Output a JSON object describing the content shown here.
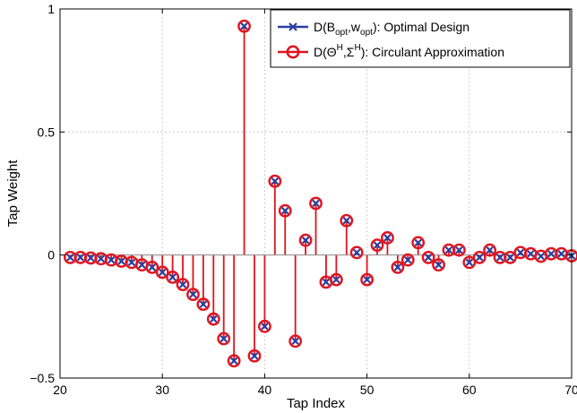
{
  "chart_data": {
    "type": "stem",
    "xlabel": "Tap Index",
    "ylabel": "Tap Weight",
    "xlim": [
      21,
      70
    ],
    "ylim": [
      -0.5,
      1
    ],
    "xticks": [
      20,
      30,
      40,
      50,
      60,
      70
    ],
    "yticks": [
      -0.5,
      0,
      0.5,
      1
    ],
    "xtick_labels": [
      "20",
      "30",
      "40",
      "50",
      "60",
      "70"
    ],
    "ytick_labels": [
      "−0.5",
      "0",
      "0.5",
      "1"
    ],
    "grid": true,
    "legend_position": "top-right",
    "x": [
      21,
      22,
      23,
      24,
      25,
      26,
      27,
      28,
      29,
      30,
      31,
      32,
      33,
      34,
      35,
      36,
      37,
      38,
      39,
      40,
      41,
      42,
      43,
      44,
      45,
      46,
      47,
      48,
      49,
      50,
      51,
      52,
      53,
      54,
      55,
      56,
      57,
      58,
      59,
      60,
      61,
      62,
      63,
      64,
      65,
      66,
      67,
      68,
      69,
      70
    ],
    "series": [
      {
        "legend": {
          "prefix": "D(B",
          "sub1": "opt",
          "mid": ",w",
          "sub2": "opt",
          "suffix": "): Optimal Design"
        },
        "marker": "x",
        "color": "#2b3f9e",
        "values": [
          -0.01,
          -0.01,
          -0.012,
          -0.015,
          -0.02,
          -0.025,
          -0.03,
          -0.04,
          -0.05,
          -0.07,
          -0.09,
          -0.12,
          -0.16,
          -0.2,
          -0.26,
          -0.34,
          -0.43,
          0.93,
          -0.41,
          -0.29,
          0.3,
          0.18,
          -0.35,
          0.06,
          0.21,
          -0.11,
          -0.1,
          0.14,
          0.01,
          -0.1,
          0.04,
          0.07,
          -0.05,
          -0.02,
          0.05,
          -0.01,
          -0.04,
          0.02,
          0.02,
          -0.03,
          -0.01,
          0.02,
          -0.01,
          -0.01,
          0.01,
          0.005,
          -0.005,
          0.005,
          0.005,
          -0.003
        ]
      },
      {
        "legend": {
          "prefix": "D(Θ",
          "sup1": "H",
          "mid": ",Σ",
          "sup2": "H",
          "suffix": "): Circulant Approximation"
        },
        "marker": "o",
        "color": "#e0141e",
        "values": [
          -0.01,
          -0.01,
          -0.012,
          -0.015,
          -0.02,
          -0.025,
          -0.03,
          -0.04,
          -0.05,
          -0.07,
          -0.09,
          -0.12,
          -0.16,
          -0.2,
          -0.26,
          -0.34,
          -0.43,
          0.93,
          -0.41,
          -0.29,
          0.3,
          0.18,
          -0.35,
          0.06,
          0.21,
          -0.11,
          -0.1,
          0.14,
          0.01,
          -0.1,
          0.04,
          0.07,
          -0.05,
          -0.02,
          0.05,
          -0.01,
          -0.04,
          0.02,
          0.02,
          -0.03,
          -0.01,
          0.02,
          -0.01,
          -0.01,
          0.01,
          0.005,
          -0.005,
          0.005,
          0.005,
          -0.003
        ]
      }
    ]
  }
}
